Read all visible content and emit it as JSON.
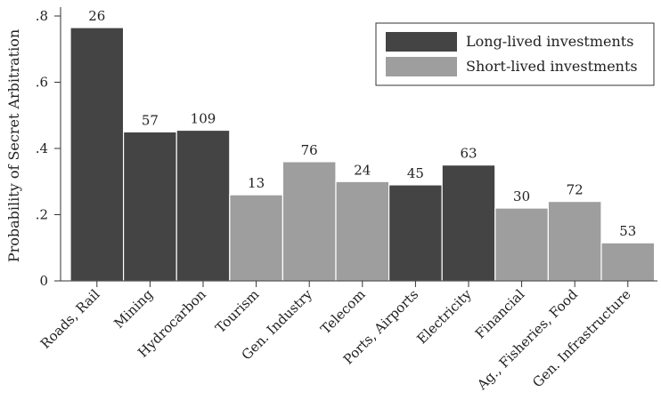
{
  "chart_data": {
    "type": "bar",
    "title": "",
    "xlabel": "",
    "ylabel": "Probability of Secret Arbitration",
    "ylim": [
      0,
      0.8
    ],
    "yticks": [
      0,
      0.2,
      0.4,
      0.6,
      0.8
    ],
    "ytick_labels": [
      "0",
      ".2",
      ".4",
      ".6",
      ".8"
    ],
    "grid": false,
    "legend_position": "top-right",
    "legend": [
      {
        "key": "long",
        "label": "Long-lived investments",
        "color": "#444444"
      },
      {
        "key": "short",
        "label": "Short-lived investments",
        "color": "#9e9e9e"
      }
    ],
    "categories": [
      "Roads, Rail",
      "Mining",
      "Hydrocarbon",
      "Tourism",
      "Gen. Industry",
      "Telecom",
      "Ports, Airports",
      "Electricity",
      "Financial",
      "Ag., Fisheries, Food",
      "Gen. Infrastructure"
    ],
    "values": [
      0.765,
      0.45,
      0.455,
      0.26,
      0.36,
      0.3,
      0.29,
      0.35,
      0.22,
      0.24,
      0.115
    ],
    "groups": [
      "long",
      "long",
      "long",
      "short",
      "short",
      "short",
      "long",
      "long",
      "short",
      "short",
      "short"
    ],
    "bar_labels": [
      "26",
      "57",
      "109",
      "13",
      "76",
      "24",
      "45",
      "63",
      "30",
      "72",
      "53"
    ]
  }
}
